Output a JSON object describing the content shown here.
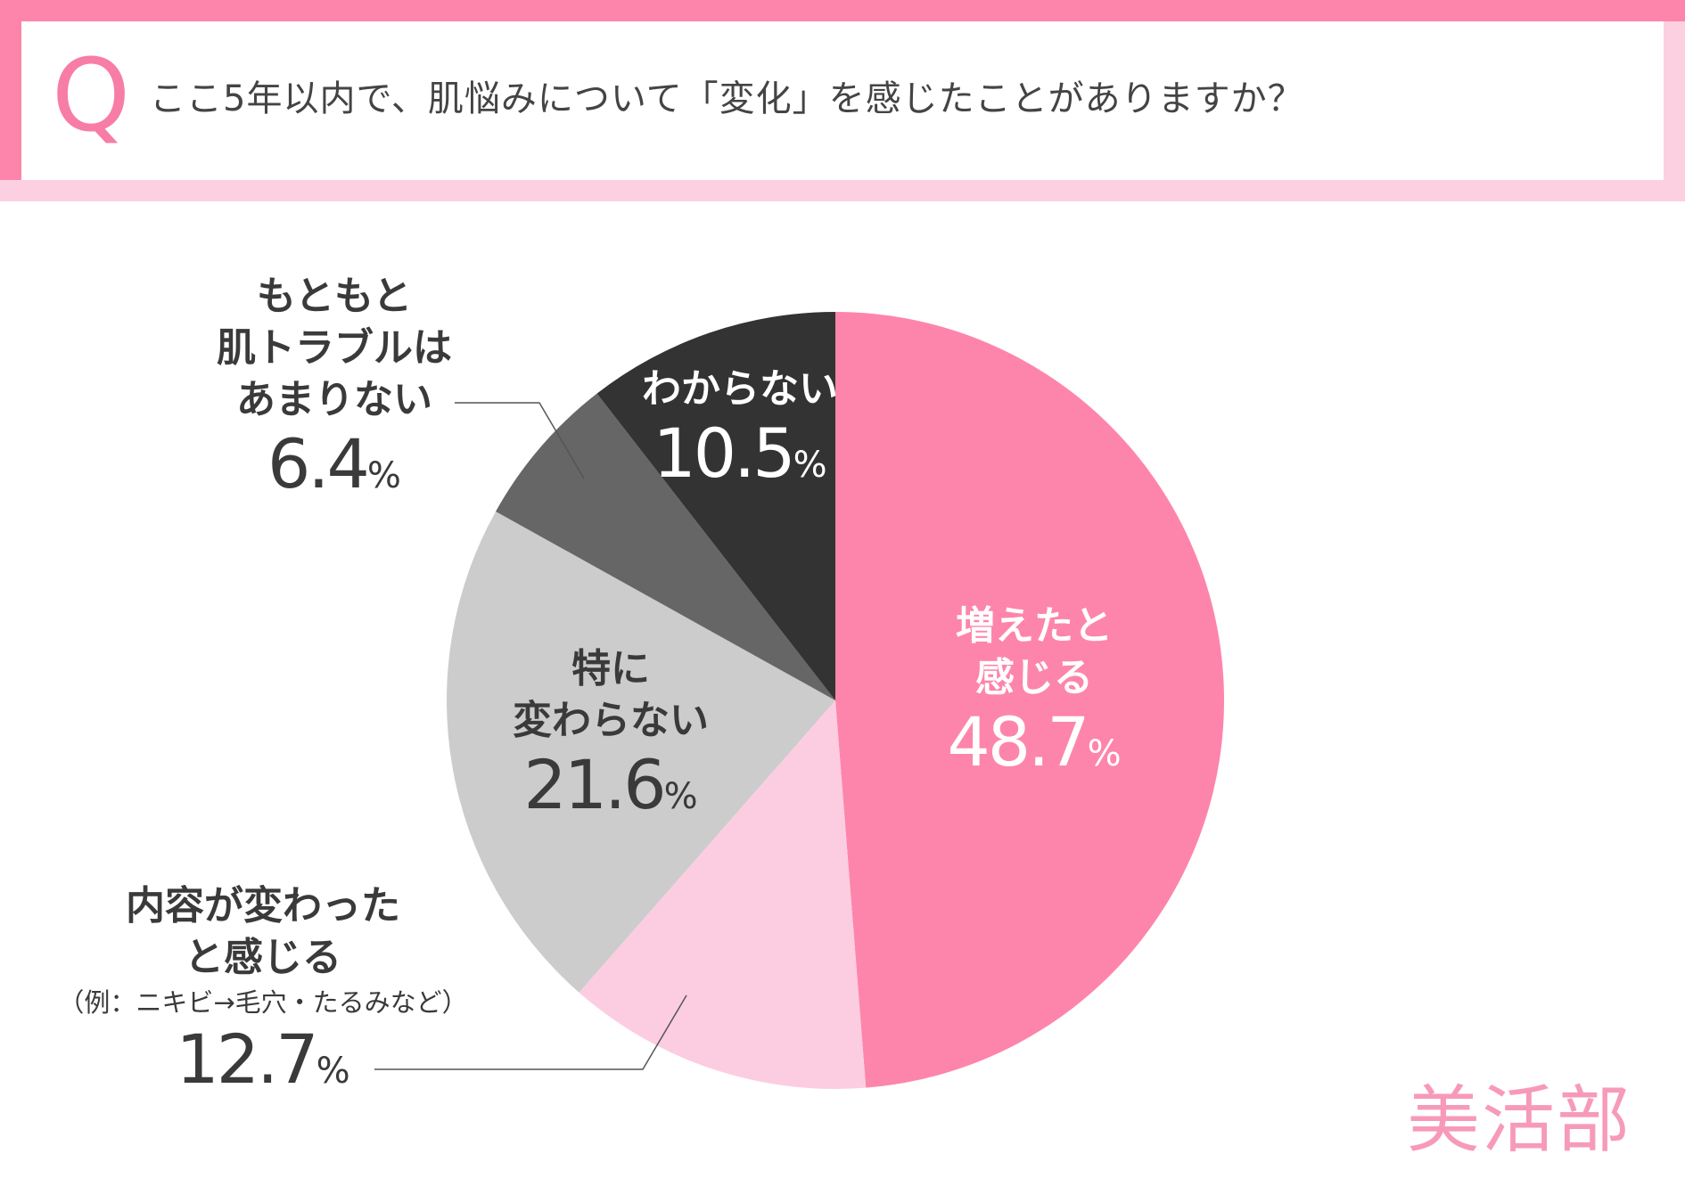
{
  "question": {
    "mark": "Q",
    "text": "ここ5年以内で、肌悩みについて「変化」を感じたことがありますか？"
  },
  "colors": {
    "header_pink": "#fd85ab",
    "header_light_pink": "#fcd0e0",
    "slice_increase": "#fd85ab",
    "slice_changed": "#fccde0",
    "slice_no_change": "#cccccc",
    "slice_no_trouble": "#666666",
    "slice_unknown": "#333333"
  },
  "chart_data": {
    "type": "pie",
    "unit": "%",
    "slices": [
      {
        "lines": [
          "増えたと",
          "感じる"
        ],
        "value": 48.7,
        "value_text": "48.7",
        "color": "#fd85ab",
        "text_color": "light"
      },
      {
        "lines": [
          "内容が変わった",
          "と感じる"
        ],
        "note": "（例：ニキビ→毛穴・たるみなど）",
        "value": 12.7,
        "value_text": "12.7",
        "color": "#fccde0",
        "text_color": "dark"
      },
      {
        "lines": [
          "特に",
          "変わらない"
        ],
        "value": 21.6,
        "value_text": "21.6",
        "color": "#cccccc",
        "text_color": "dark"
      },
      {
        "lines": [
          "もともと",
          "肌トラブルは",
          "あまりない"
        ],
        "value": 6.4,
        "value_text": "6.4",
        "color": "#666666",
        "text_color": "dark"
      },
      {
        "lines": [
          "わからない"
        ],
        "value": 10.5,
        "value_text": "10.5",
        "color": "#333333",
        "text_color": "light"
      }
    ]
  },
  "brand": {
    "name": "美活部"
  }
}
